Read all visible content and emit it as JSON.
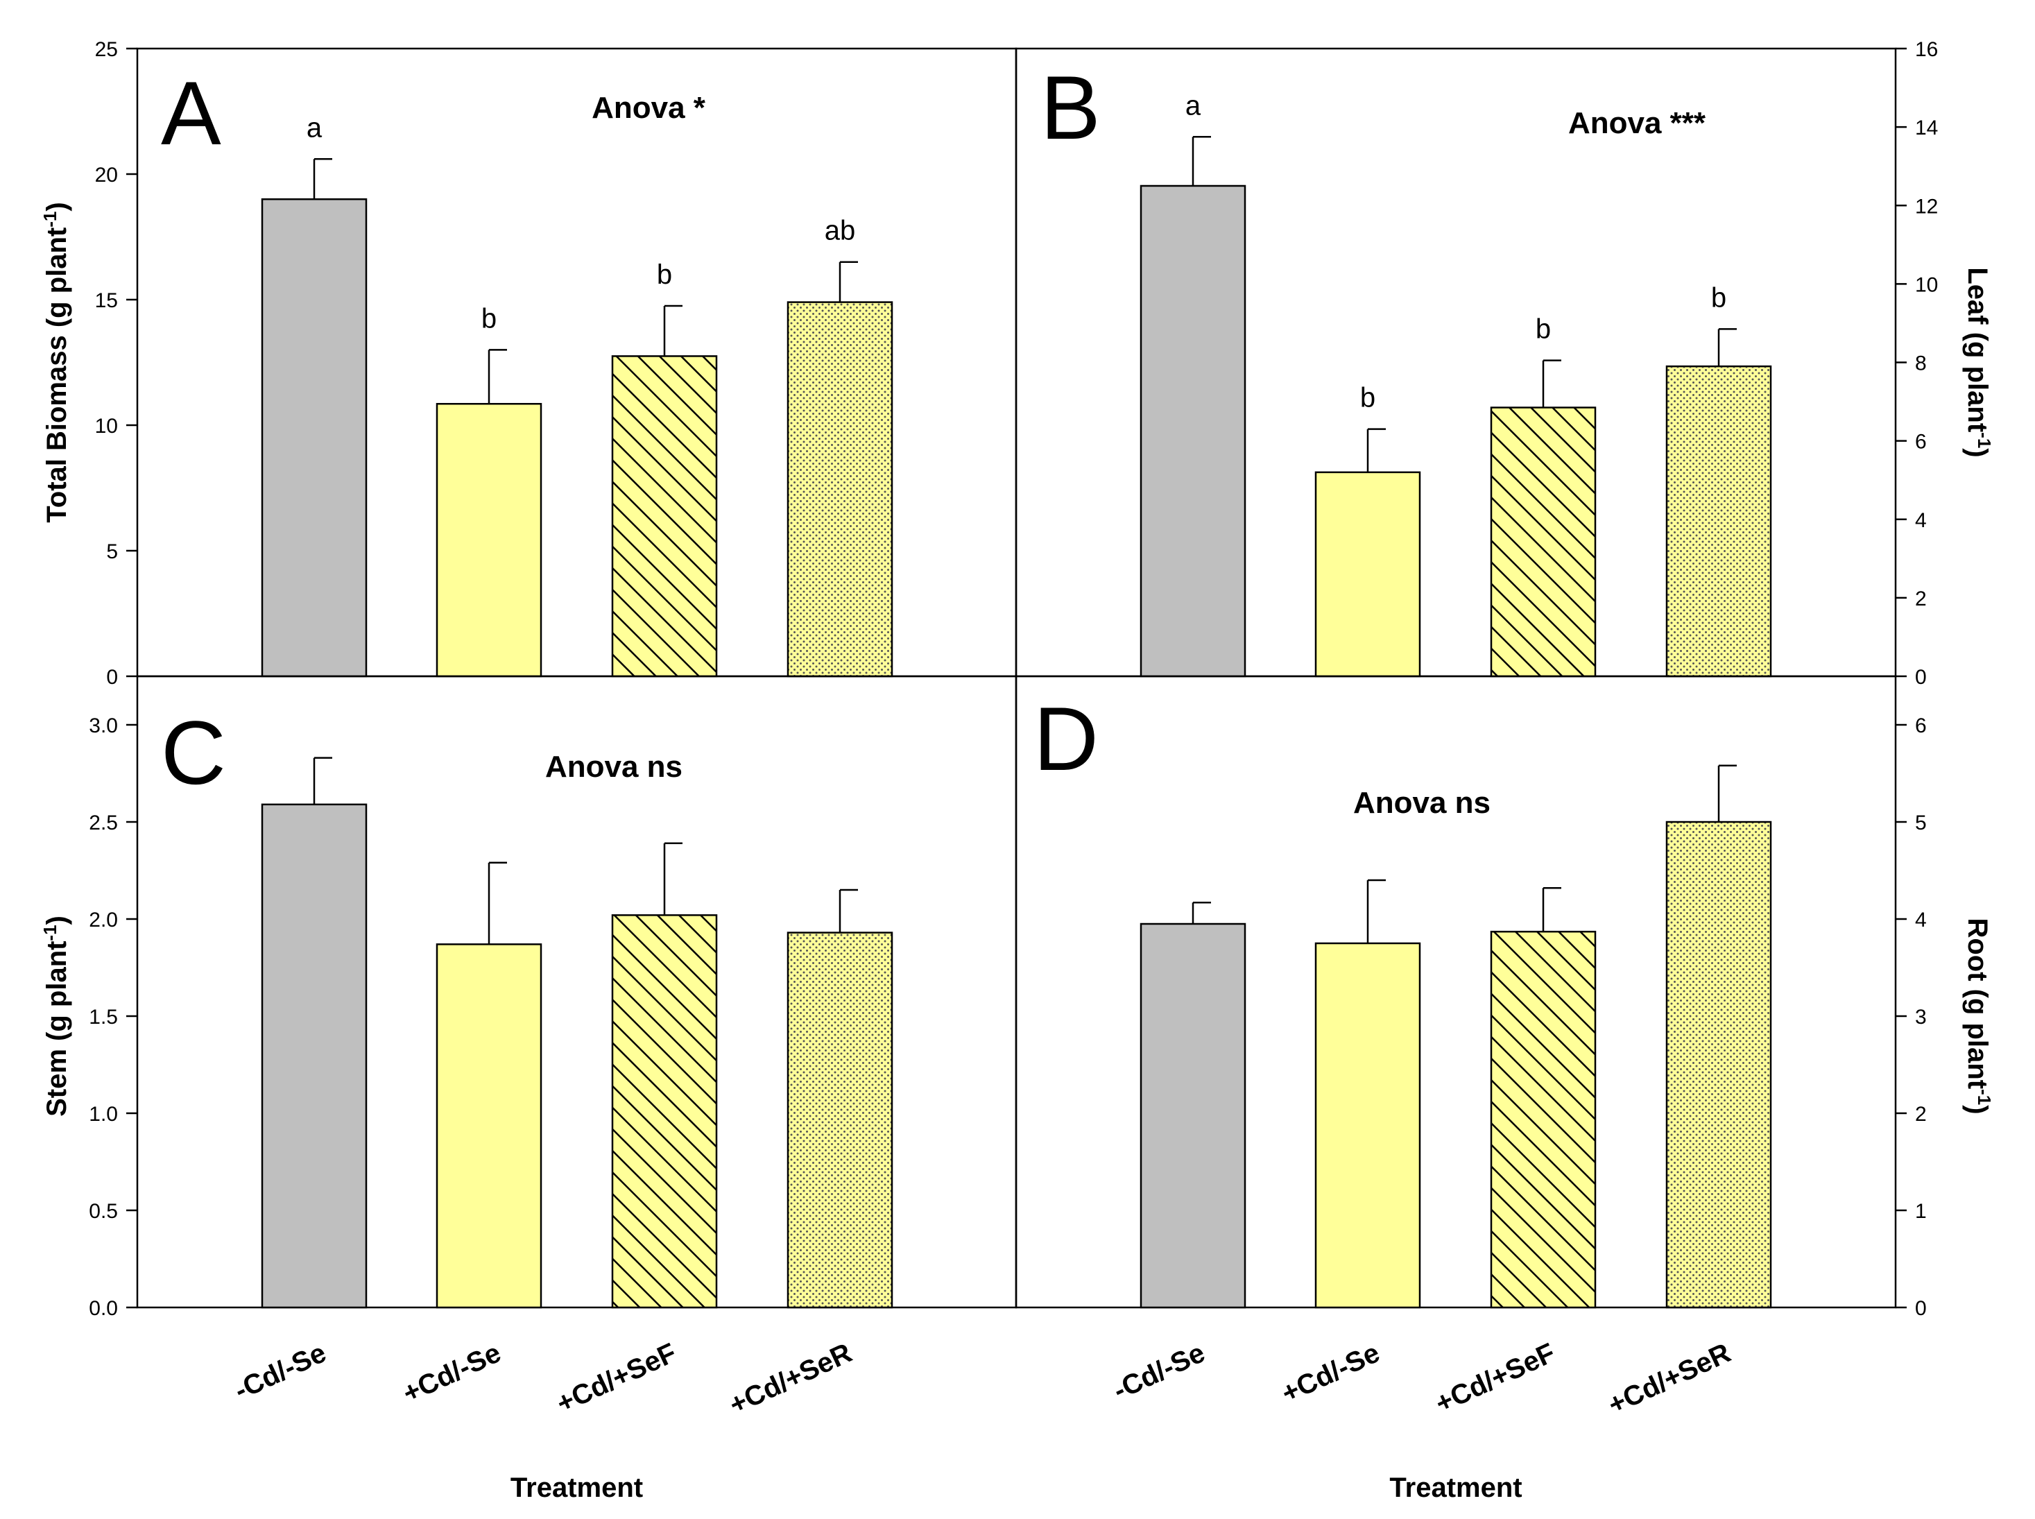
{
  "chart_data": {
    "type": "bar",
    "categories": [
      "-Cd/-Se",
      "+Cd/-Se",
      "+Cd/+SeF",
      "+Cd/+SeR"
    ],
    "xlabel": "Treatment",
    "series_styles": [
      {
        "category": "-Cd/-Se",
        "fill": "#bfbfbf",
        "pattern": "solid"
      },
      {
        "category": "+Cd/-Se",
        "fill": "#ffff99",
        "pattern": "solid"
      },
      {
        "category": "+Cd/+SeF",
        "fill": "#ffff99",
        "pattern": "diagonal-hatch"
      },
      {
        "category": "+Cd/+SeR",
        "fill": "#ffff99",
        "pattern": "dots"
      }
    ],
    "panels": [
      {
        "id": "A",
        "label": "A",
        "annotation": "Anova *",
        "ylabel_main": "Total Biomass (g plant",
        "ylabel_sup": "-1",
        "ylabel_end": ")",
        "axis_side": "left",
        "ylim": [
          0,
          25
        ],
        "yticks": [
          "0",
          "5",
          "10",
          "15",
          "20",
          "25"
        ],
        "values": [
          19.0,
          10.85,
          12.75,
          14.9
        ],
        "errors": [
          1.6,
          2.15,
          2.0,
          1.6
        ],
        "letters": [
          "a",
          "b",
          "b",
          "ab"
        ]
      },
      {
        "id": "B",
        "label": "B",
        "annotation": "Anova ***",
        "ylabel_main": "Leaf (g plant",
        "ylabel_sup": "-1",
        "ylabel_end": ")",
        "axis_side": "right",
        "ylim": [
          0,
          16
        ],
        "yticks": [
          "0",
          "2",
          "4",
          "6",
          "8",
          "10",
          "12",
          "14",
          "16"
        ],
        "values": [
          12.5,
          5.2,
          6.85,
          7.9
        ],
        "errors": [
          1.25,
          1.1,
          1.2,
          0.95
        ],
        "letters": [
          "a",
          "b",
          "b",
          "b"
        ]
      },
      {
        "id": "C",
        "label": "C",
        "annotation": "Anova ns",
        "ylabel_main": "Stem (g plant",
        "ylabel_sup": "-1",
        "ylabel_end": ")",
        "axis_side": "left",
        "ylim": [
          0,
          3.0
        ],
        "yticks": [
          "0.0",
          "0.5",
          "1.0",
          "1.5",
          "2.0",
          "2.5",
          "3.0"
        ],
        "values": [
          2.59,
          1.87,
          2.02,
          1.93
        ],
        "errors": [
          0.24,
          0.42,
          0.37,
          0.22
        ],
        "letters": [
          "",
          "",
          "",
          ""
        ]
      },
      {
        "id": "D",
        "label": "D",
        "annotation": "Anova ns",
        "ylabel_main": "Root (g plant",
        "ylabel_sup": "-1",
        "ylabel_end": ")",
        "axis_side": "right",
        "ylim": [
          0,
          6
        ],
        "yticks": [
          "0",
          "1",
          "2",
          "3",
          "4",
          "5",
          "6"
        ],
        "values": [
          3.95,
          3.75,
          3.87,
          5.0
        ],
        "errors": [
          0.22,
          0.65,
          0.45,
          0.58
        ],
        "letters": [
          "",
          "",
          "",
          ""
        ]
      }
    ]
  }
}
